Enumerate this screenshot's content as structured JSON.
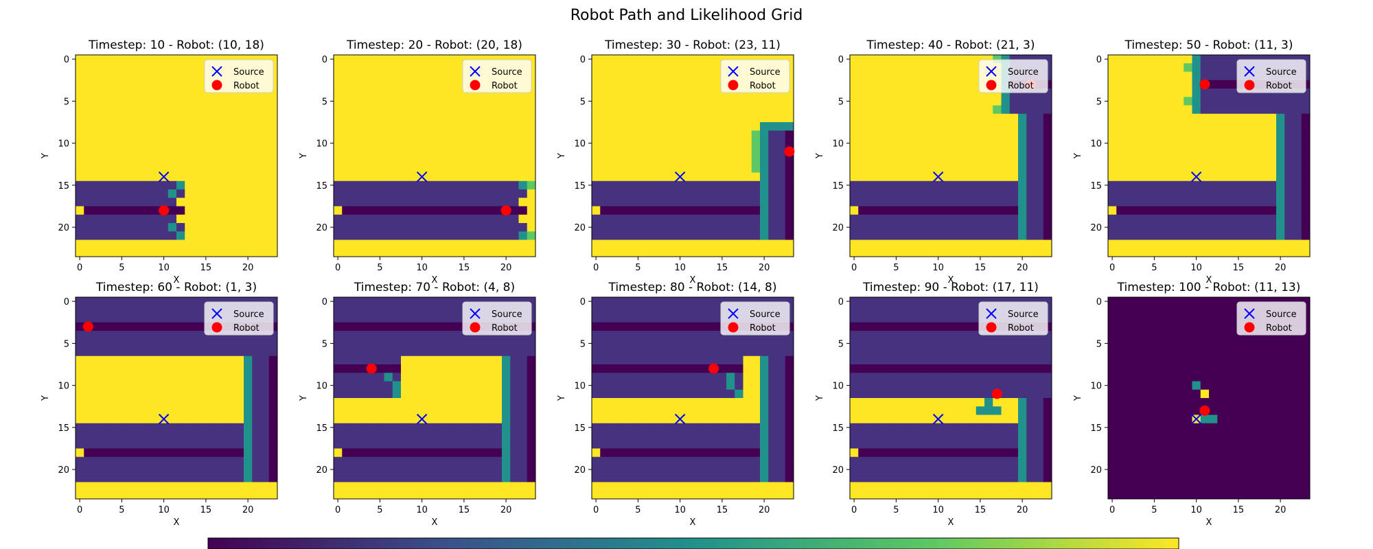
{
  "figure": {
    "title": "Robot Path and Likelihood Grid"
  },
  "chart_data": {
    "type": "heatmap",
    "grid_size": 24,
    "colormap": "viridis",
    "axis": {
      "xlabel": "X",
      "ylabel": "Y",
      "xticks": [
        0,
        5,
        10,
        15,
        20
      ],
      "yticks": [
        0,
        5,
        10,
        15,
        20
      ],
      "xlim": [
        -0.5,
        23.5
      ],
      "ylim": [
        23.5,
        -0.5
      ]
    },
    "legend": {
      "placement": "top-right",
      "entries": [
        {
          "label": "Source",
          "marker": "x",
          "color": "#0000ff"
        },
        {
          "label": "Robot",
          "marker": "circle",
          "color": "#ff0000"
        }
      ]
    },
    "source": {
      "x": 10,
      "y": 14
    },
    "colors": {
      "viridis_low": "#440154",
      "viridis_band": "#46327e",
      "viridis_mid": "#21918c",
      "viridis_green": "#5ec962",
      "viridis_high": "#fde725",
      "source_marker": "#0000ff",
      "robot_marker": "#ff0000"
    },
    "colorbar": {
      "orientation": "horizontal",
      "placement": "bottom",
      "tick_count": 6
    },
    "panels": [
      {
        "title": "Timestep: 10 - Robot: (10, 18)",
        "timestep": 10,
        "robot": {
          "x": 10,
          "y": 18
        }
      },
      {
        "title": "Timestep: 20 - Robot: (20, 18)",
        "timestep": 20,
        "robot": {
          "x": 20,
          "y": 18
        }
      },
      {
        "title": "Timestep: 30 - Robot: (23, 11)",
        "timestep": 30,
        "robot": {
          "x": 23,
          "y": 11
        }
      },
      {
        "title": "Timestep: 40 - Robot: (21, 3)",
        "timestep": 40,
        "robot": {
          "x": 21,
          "y": 3
        }
      },
      {
        "title": "Timestep: 50 - Robot: (11, 3)",
        "timestep": 50,
        "robot": {
          "x": 11,
          "y": 3
        }
      },
      {
        "title": "Timestep: 60 - Robot: (1, 3)",
        "timestep": 60,
        "robot": {
          "x": 1,
          "y": 3
        }
      },
      {
        "title": "Timestep: 70 - Robot: (4, 8)",
        "timestep": 70,
        "robot": {
          "x": 4,
          "y": 8
        }
      },
      {
        "title": "Timestep: 80 - Robot: (14, 8)",
        "timestep": 80,
        "robot": {
          "x": 14,
          "y": 8
        }
      },
      {
        "title": "Timestep: 90 - Robot: (17, 11)",
        "timestep": 90,
        "robot": {
          "x": 17,
          "y": 11
        }
      },
      {
        "title": "Timestep: 100 - Robot: (11, 13)",
        "timestep": 100,
        "robot": {
          "x": 11,
          "y": 13
        }
      }
    ]
  }
}
